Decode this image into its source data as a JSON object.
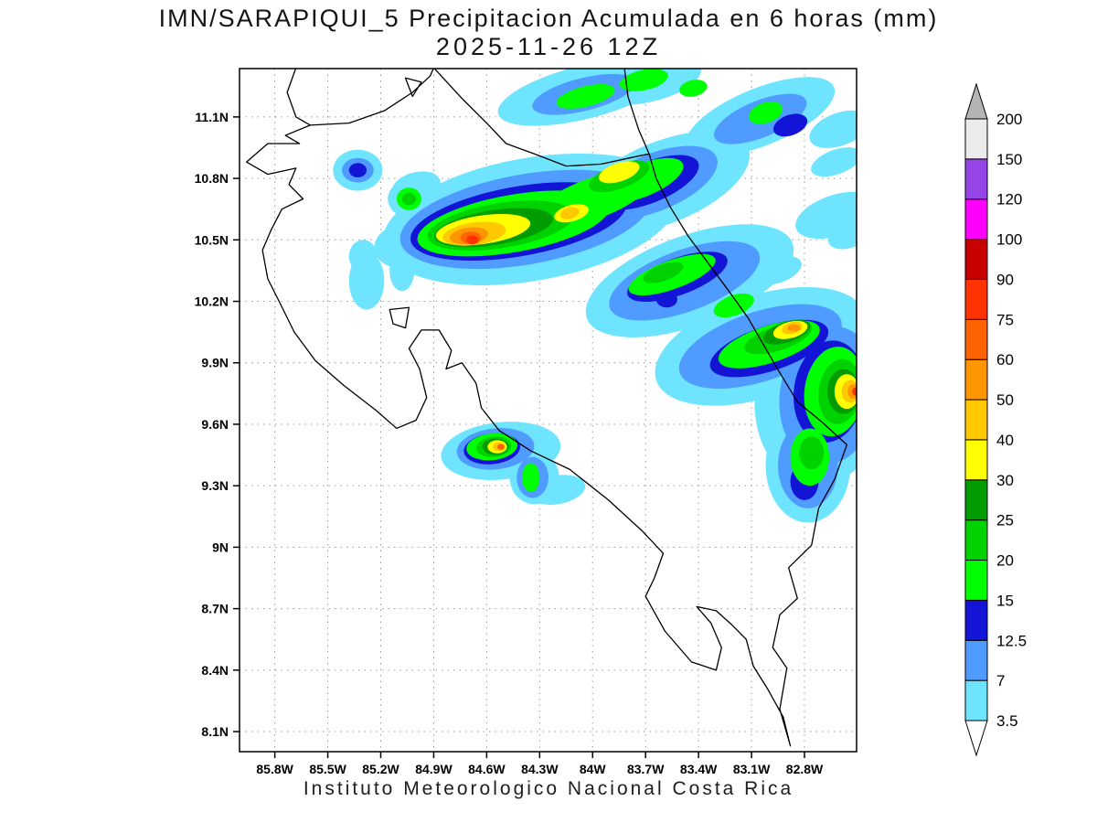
{
  "chart_data": {
    "type": "heatmap",
    "title": "IMN/SARAPIQUI_5 Precipitacion Acumulada en 6 horas (mm)",
    "subtitle": "2025-11-26 12Z",
    "caption": "Instituto Meteorologico Nacional Costa Rica",
    "units": "mm per 6 h",
    "grid": true,
    "x_axis": {
      "ticks": [
        85.8,
        85.5,
        85.2,
        84.9,
        84.6,
        84.3,
        84.0,
        83.7,
        83.4,
        83.1,
        82.8
      ],
      "tick_labels": [
        "85.8W",
        "85.5W",
        "85.2W",
        "84.9W",
        "84.6W",
        "84.3W",
        "84W",
        "83.7W",
        "83.4W",
        "83.1W",
        "82.8W"
      ],
      "range_deg_west": [
        86.0,
        82.5
      ]
    },
    "y_axis": {
      "ticks": [
        11.1,
        10.8,
        10.5,
        10.2,
        9.9,
        9.6,
        9.3,
        9.0,
        8.7,
        8.4,
        8.1
      ],
      "tick_labels": [
        "11.1N",
        "10.8N",
        "10.5N",
        "10.2N",
        "9.9N",
        "9.6N",
        "9.3N",
        "9N",
        "8.7N",
        "8.4N",
        "8.1N"
      ],
      "range_deg_north": [
        8.0,
        11.34
      ]
    },
    "color_scale": {
      "levels": [
        3.5,
        7,
        12.5,
        15,
        20,
        25,
        30,
        40,
        50,
        60,
        75,
        90,
        100,
        120,
        150,
        200
      ],
      "labels": [
        "3.5",
        "7",
        "12.5",
        "15",
        "20",
        "25",
        "30",
        "40",
        "50",
        "60",
        "75",
        "90",
        "100",
        "120",
        "150",
        "200"
      ],
      "colors": [
        "#6FE4FF",
        "#4F9BFF",
        "#1414D7",
        "#00FF00",
        "#00D200",
        "#009C00",
        "#FFFF00",
        "#FFC800",
        "#FF9600",
        "#FF6400",
        "#FF3200",
        "#C80000",
        "#FF00FF",
        "#9646E8",
        "#EBEBEB"
      ],
      "below": "#FFFFFF",
      "above": "#B4B4B4"
    },
    "precip_maxima": [
      {
        "lon_w": 84.68,
        "lat_n": 10.5,
        "approx_peak_mm": "75-90"
      },
      {
        "lon_w": 84.52,
        "lat_n": 9.49,
        "approx_peak_mm": "60-75"
      },
      {
        "lon_w": 82.86,
        "lat_n": 10.07,
        "approx_peak_mm": "50-60"
      },
      {
        "lon_w": 82.51,
        "lat_n": 9.76,
        "approx_peak_mm": "75-90"
      }
    ],
    "cells": [
      [
        84.05,
        11.22,
        0.5,
        0.13,
        -14,
        3.5
      ],
      [
        83.7,
        11.28,
        0.32,
        0.11,
        -12,
        3.5
      ],
      [
        83.05,
        11.1,
        0.45,
        0.14,
        -22,
        3.5
      ],
      [
        82.6,
        11.04,
        0.18,
        0.08,
        -20,
        3.5
      ],
      [
        82.62,
        10.88,
        0.15,
        0.06,
        -20,
        3.5
      ],
      [
        84.05,
        11.21,
        0.3,
        0.08,
        -14,
        7
      ],
      [
        83.05,
        11.09,
        0.28,
        0.09,
        -22,
        7
      ],
      [
        82.88,
        11.06,
        0.1,
        0.05,
        -20,
        12.5
      ],
      [
        84.04,
        11.2,
        0.17,
        0.05,
        -14,
        15
      ],
      [
        83.71,
        11.28,
        0.14,
        0.05,
        -12,
        15
      ],
      [
        83.43,
        11.24,
        0.08,
        0.04,
        -12,
        15
      ],
      [
        83.02,
        11.12,
        0.1,
        0.05,
        -20,
        15
      ],
      [
        85.33,
        10.84,
        0.14,
        0.1,
        0,
        3.5
      ],
      [
        85.33,
        10.84,
        0.09,
        0.06,
        0,
        7
      ],
      [
        85.33,
        10.84,
        0.05,
        0.035,
        0,
        12.5
      ],
      [
        85.04,
        10.7,
        0.12,
        0.09,
        0,
        3.5
      ],
      [
        85.04,
        10.7,
        0.07,
        0.055,
        0,
        15
      ],
      [
        85.04,
        10.7,
        0.04,
        0.03,
        0,
        20
      ],
      [
        85.0,
        10.76,
        0.14,
        0.07,
        -15,
        3.5
      ],
      [
        84.35,
        10.6,
        0.85,
        0.3,
        -10,
        3.5
      ],
      [
        83.6,
        10.78,
        0.52,
        0.2,
        -22,
        3.5
      ],
      [
        85.02,
        10.48,
        0.22,
        0.12,
        -10,
        3.5
      ],
      [
        84.38,
        10.6,
        0.72,
        0.22,
        -10,
        7
      ],
      [
        83.65,
        10.78,
        0.38,
        0.14,
        -22,
        7
      ],
      [
        84.42,
        10.59,
        0.62,
        0.17,
        -10,
        12.5
      ],
      [
        83.68,
        10.78,
        0.3,
        0.1,
        -22,
        12.5
      ],
      [
        84.45,
        10.58,
        0.55,
        0.14,
        -10,
        15
      ],
      [
        84.0,
        10.7,
        0.35,
        0.1,
        -20,
        15
      ],
      [
        83.72,
        10.79,
        0.25,
        0.08,
        -22,
        15
      ],
      [
        84.52,
        10.57,
        0.42,
        0.11,
        -9,
        20
      ],
      [
        83.85,
        10.81,
        0.18,
        0.06,
        -20,
        20
      ],
      [
        84.56,
        10.56,
        0.34,
        0.085,
        -9,
        25
      ],
      [
        84.62,
        10.55,
        0.27,
        0.07,
        -8,
        30
      ],
      [
        83.85,
        10.83,
        0.12,
        0.045,
        -18,
        30
      ],
      [
        84.12,
        10.63,
        0.1,
        0.04,
        -15,
        30
      ],
      [
        84.67,
        10.53,
        0.18,
        0.055,
        -8,
        40
      ],
      [
        84.13,
        10.63,
        0.055,
        0.028,
        -15,
        40
      ],
      [
        84.7,
        10.52,
        0.11,
        0.04,
        -8,
        50
      ],
      [
        84.69,
        10.51,
        0.06,
        0.03,
        0,
        60
      ],
      [
        84.68,
        10.5,
        0.035,
        0.022,
        0,
        75
      ],
      [
        83.45,
        10.3,
        0.62,
        0.22,
        -20,
        3.5
      ],
      [
        82.95,
        10.35,
        0.14,
        0.06,
        -20,
        3.5
      ],
      [
        83.48,
        10.3,
        0.45,
        0.15,
        -20,
        7
      ],
      [
        83.52,
        10.32,
        0.3,
        0.09,
        -20,
        12.5
      ],
      [
        83.58,
        10.21,
        0.06,
        0.04,
        0,
        12.5
      ],
      [
        83.55,
        10.33,
        0.26,
        0.07,
        -20,
        15
      ],
      [
        83.2,
        10.18,
        0.12,
        0.05,
        -20,
        15
      ],
      [
        83.6,
        10.34,
        0.12,
        0.04,
        -20,
        20
      ],
      [
        83.05,
        9.98,
        0.62,
        0.25,
        -18,
        3.5
      ],
      [
        83.05,
        9.98,
        0.48,
        0.17,
        -18,
        7
      ],
      [
        83.0,
        9.97,
        0.35,
        0.11,
        -18,
        12.5
      ],
      [
        83.0,
        9.99,
        0.3,
        0.09,
        -18,
        15
      ],
      [
        82.95,
        10.02,
        0.2,
        0.06,
        -18,
        20
      ],
      [
        82.9,
        10.05,
        0.14,
        0.05,
        -18,
        25
      ],
      [
        82.88,
        10.06,
        0.1,
        0.04,
        -15,
        30
      ],
      [
        82.87,
        10.07,
        0.06,
        0.028,
        -15,
        40
      ],
      [
        82.86,
        10.07,
        0.035,
        0.018,
        0,
        50
      ],
      [
        82.7,
        9.74,
        0.38,
        0.44,
        8,
        3.5
      ],
      [
        82.66,
        9.74,
        0.28,
        0.34,
        8,
        7
      ],
      [
        82.66,
        9.76,
        0.2,
        0.25,
        8,
        12.5
      ],
      [
        82.63,
        9.76,
        0.17,
        0.22,
        8,
        15
      ],
      [
        82.6,
        9.76,
        0.12,
        0.16,
        8,
        20
      ],
      [
        82.58,
        9.76,
        0.09,
        0.11,
        0,
        25
      ],
      [
        82.56,
        9.76,
        0.07,
        0.085,
        0,
        30
      ],
      [
        82.54,
        9.76,
        0.05,
        0.055,
        0,
        40
      ],
      [
        82.52,
        9.76,
        0.035,
        0.035,
        0,
        50
      ],
      [
        82.51,
        9.76,
        0.02,
        0.02,
        0,
        75
      ],
      [
        82.78,
        9.4,
        0.24,
        0.28,
        0,
        3.5
      ],
      [
        82.72,
        9.55,
        0.15,
        0.12,
        0,
        3.5
      ],
      [
        82.78,
        9.4,
        0.17,
        0.21,
        0,
        7
      ],
      [
        82.8,
        9.32,
        0.08,
        0.09,
        0,
        12.5
      ],
      [
        82.77,
        9.44,
        0.11,
        0.14,
        0,
        15
      ],
      [
        82.76,
        9.46,
        0.07,
        0.08,
        0,
        20
      ],
      [
        84.52,
        9.47,
        0.34,
        0.14,
        -6,
        3.5
      ],
      [
        84.33,
        9.34,
        0.14,
        0.13,
        0,
        3.5
      ],
      [
        84.2,
        9.28,
        0.16,
        0.07,
        -10,
        3.5
      ],
      [
        84.55,
        9.48,
        0.22,
        0.1,
        -6,
        7
      ],
      [
        84.34,
        9.34,
        0.09,
        0.1,
        0,
        7
      ],
      [
        84.57,
        9.48,
        0.16,
        0.075,
        -6,
        12.5
      ],
      [
        84.57,
        9.49,
        0.145,
        0.065,
        -6,
        15
      ],
      [
        84.35,
        9.34,
        0.05,
        0.07,
        0,
        15
      ],
      [
        84.56,
        9.49,
        0.1,
        0.05,
        -6,
        20
      ],
      [
        84.55,
        9.49,
        0.075,
        0.04,
        0,
        25
      ],
      [
        84.54,
        9.49,
        0.055,
        0.032,
        0,
        30
      ],
      [
        84.53,
        9.49,
        0.035,
        0.022,
        0,
        40
      ],
      [
        84.52,
        9.49,
        0.02,
        0.014,
        0,
        60
      ],
      [
        85.28,
        10.3,
        0.1,
        0.14,
        0,
        3.5
      ],
      [
        85.3,
        10.42,
        0.08,
        0.08,
        0,
        3.5
      ],
      [
        85.08,
        10.35,
        0.07,
        0.1,
        0,
        3.5
      ],
      [
        82.62,
        10.62,
        0.24,
        0.1,
        -18,
        3.5
      ],
      [
        82.55,
        10.52,
        0.12,
        0.06,
        -18,
        3.5
      ],
      [
        83.11,
        10.47,
        0.1,
        0.05,
        -20,
        3.5
      ]
    ]
  },
  "geography": {
    "coast_lines": [
      [
        [
          85.68,
          11.34
        ],
        [
          85.73,
          11.22
        ],
        [
          85.68,
          11.1
        ],
        [
          85.6,
          11.06
        ],
        [
          85.74,
          11.01
        ],
        [
          85.66,
          10.97
        ],
        [
          85.84,
          10.97
        ],
        [
          85.96,
          10.88
        ],
        [
          85.84,
          10.82
        ],
        [
          85.68,
          10.85
        ],
        [
          85.72,
          10.77
        ],
        [
          85.64,
          10.7
        ],
        [
          85.76,
          10.65
        ],
        [
          85.82,
          10.55
        ],
        [
          85.87,
          10.45
        ],
        [
          85.84,
          10.31
        ],
        [
          85.77,
          10.19
        ],
        [
          85.69,
          10.05
        ],
        [
          85.57,
          9.91
        ],
        [
          85.41,
          9.79
        ],
        [
          85.23,
          9.67
        ],
        [
          85.11,
          9.58
        ],
        [
          85.0,
          9.62
        ],
        [
          84.94,
          9.73
        ],
        [
          84.98,
          9.87
        ],
        [
          85.04,
          9.97
        ],
        [
          84.97,
          10.06
        ],
        [
          84.87,
          10.06
        ],
        [
          84.8,
          9.96
        ],
        [
          84.83,
          9.87
        ],
        [
          84.74,
          9.9
        ],
        [
          84.66,
          9.8
        ],
        [
          84.63,
          9.68
        ],
        [
          84.53,
          9.57
        ],
        [
          84.35,
          9.47
        ],
        [
          84.13,
          9.38
        ],
        [
          83.91,
          9.23
        ],
        [
          83.72,
          9.08
        ],
        [
          83.6,
          8.97
        ],
        [
          83.65,
          8.85
        ],
        [
          83.7,
          8.76
        ],
        [
          83.59,
          8.59
        ],
        [
          83.44,
          8.44
        ],
        [
          83.3,
          8.4
        ],
        [
          83.27,
          8.51
        ],
        [
          83.33,
          8.63
        ],
        [
          83.41,
          8.71
        ],
        [
          83.3,
          8.69
        ],
        [
          83.21,
          8.62
        ],
        [
          83.13,
          8.55
        ],
        [
          83.09,
          8.42
        ],
        [
          83.01,
          8.31
        ],
        [
          82.92,
          8.17
        ],
        [
          82.88,
          8.03
        ],
        [
          82.94,
          8.21
        ],
        [
          82.9,
          8.41
        ],
        [
          82.98,
          8.51
        ],
        [
          82.94,
          8.67
        ],
        [
          82.84,
          8.75
        ],
        [
          82.89,
          8.9
        ],
        [
          82.76,
          9.01
        ],
        [
          82.72,
          9.19
        ],
        [
          82.63,
          9.33
        ],
        [
          82.56,
          9.5
        ],
        [
          82.7,
          9.61
        ],
        [
          82.84,
          9.71
        ],
        [
          82.96,
          9.88
        ],
        [
          83.04,
          10.0
        ],
        [
          83.12,
          10.12
        ],
        [
          83.22,
          10.24
        ],
        [
          83.34,
          10.38
        ],
        [
          83.46,
          10.52
        ],
        [
          83.56,
          10.66
        ],
        [
          83.64,
          10.8
        ],
        [
          83.68,
          10.92
        ],
        [
          83.74,
          11.04
        ],
        [
          83.8,
          11.2
        ],
        [
          83.82,
          11.34
        ]
      ],
      [
        [
          85.6,
          11.06
        ],
        [
          85.38,
          11.07
        ],
        [
          85.18,
          11.13
        ],
        [
          85.02,
          11.22
        ],
        [
          84.92,
          11.3
        ],
        [
          84.9,
          11.34
        ]
      ],
      [
        [
          84.9,
          11.34
        ],
        [
          84.74,
          11.19
        ],
        [
          84.6,
          11.07
        ],
        [
          84.49,
          10.97
        ],
        [
          84.33,
          10.92
        ],
        [
          84.15,
          10.86
        ],
        [
          83.95,
          10.87
        ],
        [
          83.79,
          10.9
        ],
        [
          83.68,
          10.92
        ]
      ]
    ],
    "islands": [
      [
        [
          85.06,
          11.29
        ],
        [
          84.97,
          11.27
        ],
        [
          85.02,
          11.2
        ]
      ],
      [
        [
          85.15,
          10.16
        ],
        [
          85.04,
          10.17
        ],
        [
          85.06,
          10.07
        ],
        [
          85.13,
          10.09
        ]
      ]
    ]
  }
}
